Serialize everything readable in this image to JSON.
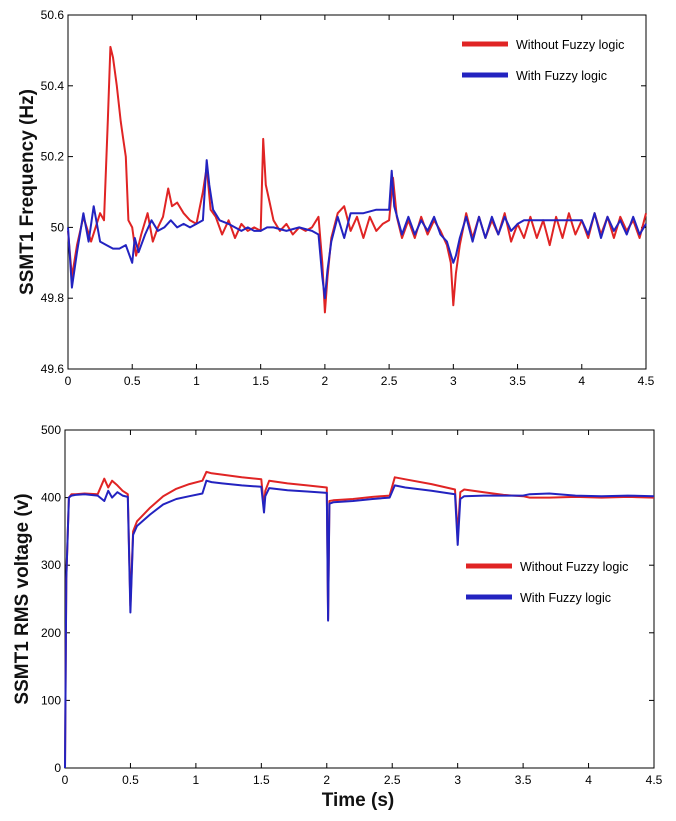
{
  "chart_data": [
    {
      "type": "line",
      "title": "",
      "xlabel": "",
      "ylabel": "SSMT1 Frequency (Hz)",
      "xlim": [
        0,
        4.5
      ],
      "ylim": [
        49.6,
        50.6
      ],
      "xticks": [
        "0",
        "0.5",
        "1",
        "1.5",
        "2",
        "2.5",
        "3",
        "3.5",
        "4",
        "4.5"
      ],
      "yticks": [
        "49.6",
        "49.8",
        "50",
        "50.2",
        "50.4",
        "50.6"
      ],
      "grid": false,
      "legend_position": "top-right",
      "series": [
        {
          "name": "Without Fuzzy logic",
          "color": "#e02424",
          "x": [
            0,
            0.03,
            0.07,
            0.12,
            0.18,
            0.25,
            0.28,
            0.31,
            0.33,
            0.35,
            0.38,
            0.41,
            0.43,
            0.45,
            0.47,
            0.5,
            0.53,
            0.57,
            0.62,
            0.66,
            0.7,
            0.74,
            0.78,
            0.81,
            0.85,
            0.9,
            0.95,
            1.0,
            1.05,
            1.08,
            1.11,
            1.15,
            1.2,
            1.25,
            1.3,
            1.35,
            1.4,
            1.45,
            1.5,
            1.52,
            1.54,
            1.57,
            1.6,
            1.65,
            1.7,
            1.75,
            1.8,
            1.85,
            1.9,
            1.95,
            1.98,
            2.0,
            2.02,
            2.05,
            2.1,
            2.15,
            2.2,
            2.25,
            2.3,
            2.35,
            2.4,
            2.45,
            2.5,
            2.53,
            2.56,
            2.6,
            2.65,
            2.7,
            2.75,
            2.8,
            2.85,
            2.9,
            2.95,
            2.98,
            3.0,
            3.02,
            3.05,
            3.1,
            3.15,
            3.2,
            3.25,
            3.3,
            3.35,
            3.4,
            3.45,
            3.5,
            3.55,
            3.6,
            3.65,
            3.7,
            3.75,
            3.8,
            3.85,
            3.9,
            3.95,
            4.0,
            4.05,
            4.1,
            4.15,
            4.2,
            4.25,
            4.3,
            4.35,
            4.4,
            4.45,
            4.5
          ],
          "y": [
            49.99,
            49.86,
            49.95,
            50.03,
            49.96,
            50.04,
            50.02,
            50.3,
            50.51,
            50.48,
            50.4,
            50.3,
            50.25,
            50.2,
            50.02,
            50.0,
            49.92,
            49.98,
            50.04,
            49.96,
            50.0,
            50.03,
            50.11,
            50.06,
            50.07,
            50.04,
            50.02,
            50.01,
            50.1,
            50.17,
            50.05,
            50.03,
            49.98,
            50.02,
            49.97,
            50.01,
            49.99,
            50.0,
            49.99,
            50.25,
            50.12,
            50.07,
            50.02,
            49.99,
            50.01,
            49.98,
            50.0,
            49.99,
            50.0,
            50.03,
            49.9,
            49.76,
            49.86,
            49.97,
            50.04,
            50.06,
            49.99,
            50.03,
            49.97,
            50.03,
            49.99,
            50.01,
            50.02,
            50.14,
            50.03,
            49.97,
            50.02,
            49.97,
            50.03,
            49.98,
            50.02,
            49.99,
            49.95,
            49.9,
            49.78,
            49.87,
            49.95,
            50.04,
            49.97,
            50.03,
            49.97,
            50.02,
            49.98,
            50.04,
            49.96,
            50.01,
            49.97,
            50.03,
            49.97,
            50.02,
            49.95,
            50.03,
            49.97,
            50.04,
            49.98,
            50.02,
            49.97,
            50.04,
            49.98,
            50.03,
            49.97,
            50.03,
            49.99,
            50.02,
            49.97,
            50.04
          ]
        },
        {
          "name": "With Fuzzy logic",
          "color": "#2323c0",
          "x": [
            0,
            0.03,
            0.07,
            0.12,
            0.16,
            0.2,
            0.25,
            0.3,
            0.35,
            0.4,
            0.45,
            0.5,
            0.52,
            0.55,
            0.6,
            0.65,
            0.7,
            0.75,
            0.8,
            0.85,
            0.9,
            0.95,
            1.0,
            1.05,
            1.08,
            1.1,
            1.13,
            1.18,
            1.25,
            1.3,
            1.35,
            1.4,
            1.45,
            1.5,
            1.55,
            1.6,
            1.7,
            1.8,
            1.9,
            1.95,
            1.98,
            2.0,
            2.02,
            2.05,
            2.1,
            2.15,
            2.2,
            2.3,
            2.4,
            2.5,
            2.52,
            2.54,
            2.57,
            2.6,
            2.65,
            2.7,
            2.75,
            2.8,
            2.85,
            2.9,
            2.95,
            3.0,
            3.02,
            3.05,
            3.1,
            3.15,
            3.2,
            3.25,
            3.3,
            3.35,
            3.4,
            3.45,
            3.5,
            3.55,
            3.6,
            3.7,
            3.8,
            3.9,
            4.0,
            4.05,
            4.1,
            4.15,
            4.2,
            4.25,
            4.3,
            4.35,
            4.4,
            4.45,
            4.5
          ],
          "y": [
            50.0,
            49.83,
            49.93,
            50.04,
            49.96,
            50.06,
            49.96,
            49.95,
            49.94,
            49.94,
            49.95,
            49.9,
            49.97,
            49.93,
            49.98,
            50.02,
            49.99,
            50.0,
            50.02,
            50.0,
            50.01,
            50.0,
            50.01,
            50.02,
            50.19,
            50.12,
            50.05,
            50.02,
            50.01,
            50.0,
            49.99,
            50.0,
            49.99,
            49.99,
            50.0,
            50.0,
            49.99,
            50.0,
            49.99,
            49.98,
            49.86,
            49.8,
            49.88,
            49.96,
            50.03,
            49.97,
            50.04,
            50.04,
            50.05,
            50.05,
            50.16,
            50.06,
            50.02,
            49.98,
            50.03,
            49.98,
            50.02,
            49.99,
            50.03,
            49.98,
            49.96,
            49.9,
            49.92,
            49.97,
            50.03,
            49.96,
            50.03,
            49.97,
            50.03,
            49.98,
            50.03,
            49.99,
            50.01,
            50.02,
            50.02,
            50.02,
            50.02,
            50.02,
            50.02,
            49.98,
            50.04,
            49.97,
            50.03,
            49.99,
            50.02,
            49.98,
            50.03,
            49.98,
            50.01
          ]
        }
      ]
    },
    {
      "type": "line",
      "title": "",
      "xlabel": "Time (s)",
      "ylabel": "SSMT1 RMS voltage (v)",
      "xlim": [
        0,
        4.5
      ],
      "ylim": [
        0,
        500
      ],
      "xticks": [
        "0",
        "0.5",
        "1",
        "1.5",
        "2",
        "2.5",
        "3",
        "3.5",
        "4",
        "4.5"
      ],
      "yticks": [
        "0",
        "100",
        "200",
        "300",
        "400",
        "500"
      ],
      "grid": false,
      "legend_position": "center-right",
      "series": [
        {
          "name": "Without Fuzzy logic",
          "color": "#e02424",
          "x": [
            0,
            0.01,
            0.03,
            0.05,
            0.08,
            0.15,
            0.25,
            0.3,
            0.33,
            0.36,
            0.4,
            0.44,
            0.48,
            0.5,
            0.52,
            0.55,
            0.65,
            0.75,
            0.85,
            0.95,
            1.05,
            1.08,
            1.12,
            1.2,
            1.35,
            1.5,
            1.52,
            1.53,
            1.56,
            1.7,
            1.85,
            2.0,
            2.01,
            2.02,
            2.05,
            2.2,
            2.35,
            2.48,
            2.52,
            2.6,
            2.8,
            2.98,
            3.0,
            3.02,
            3.05,
            3.2,
            3.35,
            3.5,
            3.55,
            3.7,
            3.9,
            4.1,
            4.3,
            4.5
          ],
          "y": [
            0,
            280,
            400,
            405,
            405,
            406,
            405,
            428,
            415,
            425,
            418,
            410,
            405,
            240,
            350,
            365,
            385,
            402,
            413,
            420,
            425,
            438,
            436,
            434,
            430,
            427,
            385,
            410,
            425,
            421,
            418,
            415,
            220,
            395,
            396,
            398,
            401,
            403,
            430,
            427,
            420,
            412,
            345,
            408,
            412,
            408,
            404,
            402,
            400,
            400,
            401,
            400,
            401,
            400
          ]
        },
        {
          "name": "With Fuzzy logic",
          "color": "#2323c0",
          "x": [
            0,
            0.01,
            0.03,
            0.05,
            0.08,
            0.15,
            0.25,
            0.3,
            0.33,
            0.36,
            0.4,
            0.44,
            0.48,
            0.5,
            0.52,
            0.55,
            0.65,
            0.75,
            0.85,
            0.95,
            1.05,
            1.08,
            1.12,
            1.2,
            1.35,
            1.5,
            1.52,
            1.53,
            1.56,
            1.7,
            1.85,
            2.0,
            2.01,
            2.02,
            2.05,
            2.2,
            2.35,
            2.48,
            2.52,
            2.6,
            2.8,
            2.98,
            3.0,
            3.02,
            3.05,
            3.2,
            3.35,
            3.5,
            3.55,
            3.7,
            3.9,
            4.1,
            4.3,
            4.5
          ],
          "y": [
            0,
            280,
            400,
            403,
            404,
            405,
            403,
            395,
            410,
            400,
            408,
            403,
            401,
            230,
            345,
            358,
            375,
            390,
            398,
            402,
            406,
            425,
            423,
            421,
            418,
            416,
            378,
            402,
            414,
            411,
            409,
            407,
            218,
            391,
            393,
            395,
            398,
            400,
            418,
            415,
            410,
            405,
            330,
            398,
            402,
            403,
            403,
            403,
            405,
            406,
            403,
            402,
            403,
            402
          ]
        }
      ]
    }
  ]
}
